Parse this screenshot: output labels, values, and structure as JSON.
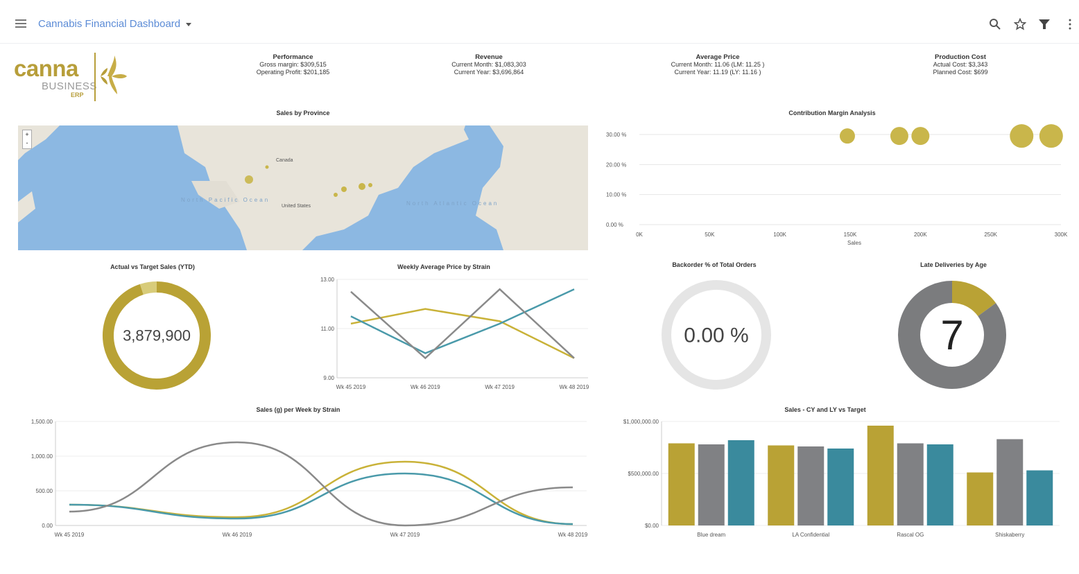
{
  "header": {
    "title": "Cannabis Financial Dashboard"
  },
  "logo": {
    "word1": "canna",
    "word2": "BUSINESS",
    "word3": "ERP"
  },
  "kpis": [
    {
      "title": "Performance",
      "line1": "Gross margin: $309,515",
      "line2": "Operating Profit: $201,185"
    },
    {
      "title": "Revenue",
      "line1": "Current Month: $1,083,303",
      "line2": "Current Year: $3,696,864"
    },
    {
      "title": "Average Price",
      "line1": "Current Month: 11.06 (LM: 11.25 )",
      "line2": "Current Year: 11.19 (LY: 11.16 )"
    },
    {
      "title": "Production Cost",
      "line1": "Actual Cost: $3,343",
      "line2": "Planned Cost: $699"
    }
  ],
  "map": {
    "title": "Sales by Province",
    "labels": [
      "North Pacific Ocean",
      "North Atlantic Ocean",
      "Canada",
      "United States"
    ],
    "zoom_in": "+",
    "zoom_out": "-"
  },
  "contribution": {
    "title": "Contribution Margin Analysis",
    "xlabel": "Sales",
    "y_ticks": [
      "30.00 %",
      "20.00 %",
      "10.00 %",
      "0.00 %"
    ],
    "x_ticks": [
      "0K",
      "50K",
      "100K",
      "150K",
      "200K",
      "250K",
      "300K"
    ],
    "chart_data": {
      "type": "scatter",
      "x": [
        148000,
        185000,
        200000,
        272000,
        293000
      ],
      "y": [
        29.5,
        29.5,
        29.5,
        29.5,
        29.5
      ],
      "xlim": [
        0,
        300000
      ],
      "ylim": [
        0,
        30
      ],
      "color": "#c9b64b"
    }
  },
  "actual_vs_target": {
    "title": "Actual vs Target Sales (YTD)",
    "value": "3,879,900",
    "chart_data": {
      "type": "pie",
      "values": [
        95,
        5
      ],
      "colors": [
        "#b9a235",
        "#d8cc7a"
      ]
    }
  },
  "weekly_price": {
    "title": "Weekly Average Price by Strain",
    "y_ticks": [
      "13.00",
      "11.00",
      "9.00"
    ],
    "chart_data": {
      "type": "line",
      "categories": [
        "Wk 45 2019",
        "Wk 46 2019",
        "Wk 47 2019",
        "Wk 48 2019"
      ],
      "ylim": [
        9,
        13
      ],
      "series": [
        {
          "values": [
            11.2,
            11.8,
            11.3,
            9.8
          ],
          "color": "#c9b238"
        },
        {
          "values": [
            11.5,
            10.0,
            11.2,
            12.6
          ],
          "color": "#4a9aaa"
        },
        {
          "values": [
            12.5,
            9.8,
            12.6,
            9.8
          ],
          "color": "#8a8a8a"
        }
      ]
    }
  },
  "backorder": {
    "title": "Backorder % of Total Orders",
    "value": "0.00 %",
    "chart_data": {
      "type": "pie",
      "values": [
        0,
        100
      ],
      "colors": [
        "#c9b64b",
        "#e5e5e5"
      ]
    }
  },
  "late_deliveries": {
    "title": "Late Deliveries by Age",
    "value": "7",
    "chart_data": {
      "type": "pie",
      "values": [
        15,
        85
      ],
      "colors": [
        "#b9a235",
        "#7b7c7e"
      ]
    }
  },
  "sales_week": {
    "title": "Sales (g) per Week by Strain",
    "y_ticks": [
      "1,500.00",
      "1,000.00",
      "500.00",
      "0.00"
    ],
    "chart_data": {
      "type": "line",
      "categories": [
        "Wk 45 2019",
        "Wk 46 2019",
        "Wk 47 2019",
        "Wk 48 2019"
      ],
      "ylim": [
        0,
        1500
      ],
      "series": [
        {
          "values": [
            300,
            120,
            920,
            20
          ],
          "color": "#c9b238"
        },
        {
          "values": [
            300,
            100,
            750,
            20
          ],
          "color": "#4a9aaa"
        },
        {
          "values": [
            200,
            1200,
            0,
            550
          ],
          "color": "#8a8a8a"
        }
      ]
    }
  },
  "sales_cy_ly": {
    "title": "Sales - CY and LY vs Target",
    "y_ticks": [
      "$1,000,000.00",
      "$500,000.00",
      "$0.00"
    ],
    "chart_data": {
      "type": "bar",
      "categories": [
        "Blue dream",
        "LA Confidential",
        "Rascal OG",
        "Shiskaberry"
      ],
      "ylim": [
        0,
        1000000
      ],
      "series": [
        {
          "values": [
            790000,
            770000,
            960000,
            510000
          ],
          "color": "#b9a235"
        },
        {
          "values": [
            780000,
            760000,
            790000,
            830000
          ],
          "color": "#808184"
        },
        {
          "values": [
            820000,
            740000,
            780000,
            530000
          ],
          "color": "#3a8a9d"
        }
      ]
    }
  }
}
